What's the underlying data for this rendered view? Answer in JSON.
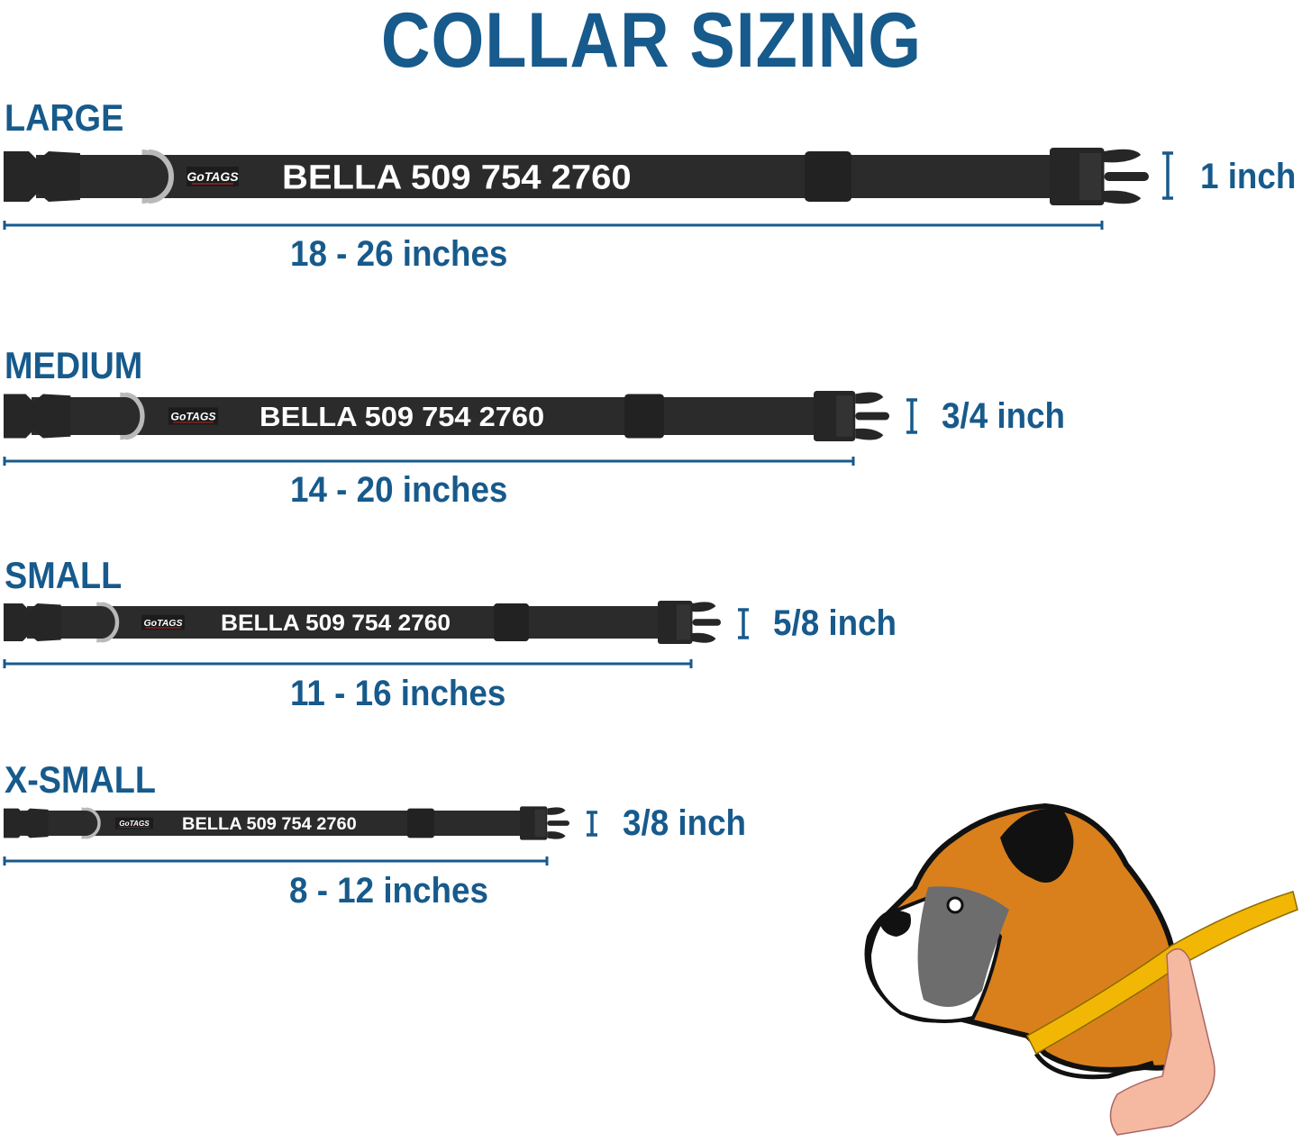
{
  "title": "COLLAR SIZING",
  "colors": {
    "accent": "#175a8c",
    "collar": "#2b2b2b",
    "ring": "#b9b9b9",
    "tape": "#f2b705",
    "dog_fur": "#d9801c"
  },
  "sizes": [
    {
      "name": "LARGE",
      "collar_text": "BELLA 509 754 2760",
      "logo": "GoTAGS",
      "range": "18 - 26 inches",
      "width": "1 inch"
    },
    {
      "name": "MEDIUM",
      "collar_text": "BELLA 509 754 2760",
      "logo": "GoTAGS",
      "range": "14 - 20 inches",
      "width": "3/4 inch"
    },
    {
      "name": "SMALL",
      "collar_text": "BELLA 509 754 2760",
      "logo": "GoTAGS",
      "range": "11 - 16 inches",
      "width": "5/8 inch"
    },
    {
      "name": "X-SMALL",
      "collar_text": "BELLA 509 754 2760",
      "logo": "GoTAGS",
      "range": "8 - 12 inches",
      "width": "3/8 inch"
    }
  ],
  "illustration": {
    "icon": "boxer-dog-neck-measuring-icon"
  }
}
